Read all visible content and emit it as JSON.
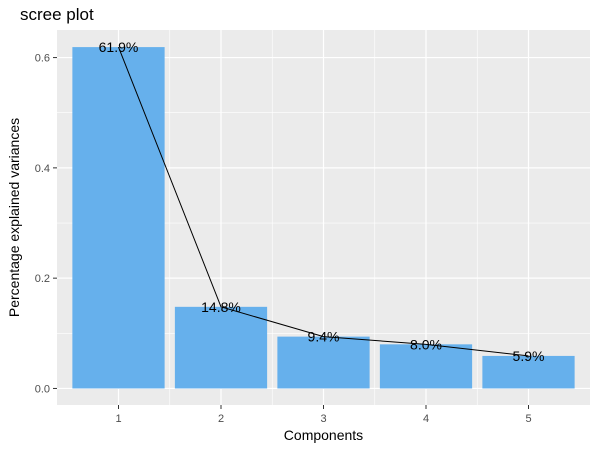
{
  "chart_data": {
    "type": "bar",
    "title": "scree plot",
    "xlabel": "Components",
    "ylabel": "Percentage explained variances",
    "categories": [
      "1",
      "2",
      "3",
      "4",
      "5"
    ],
    "values": [
      0.619,
      0.148,
      0.094,
      0.08,
      0.059
    ],
    "data_labels": [
      "61.9%",
      "14.8%",
      "9.4%",
      "8.0%",
      "5.9%"
    ],
    "line_overlay": true,
    "ylim": [
      -0.03,
      0.65
    ],
    "yticks": [
      0.0,
      0.2,
      0.4,
      0.6
    ],
    "ytick_labels": [
      "0.0",
      "0.2",
      "0.4",
      "0.6"
    ],
    "grid": true,
    "colors": {
      "bar": "#66B0EC",
      "panel": "#EBEBEB",
      "grid": "#FFFFFF",
      "line": "#000000"
    }
  }
}
